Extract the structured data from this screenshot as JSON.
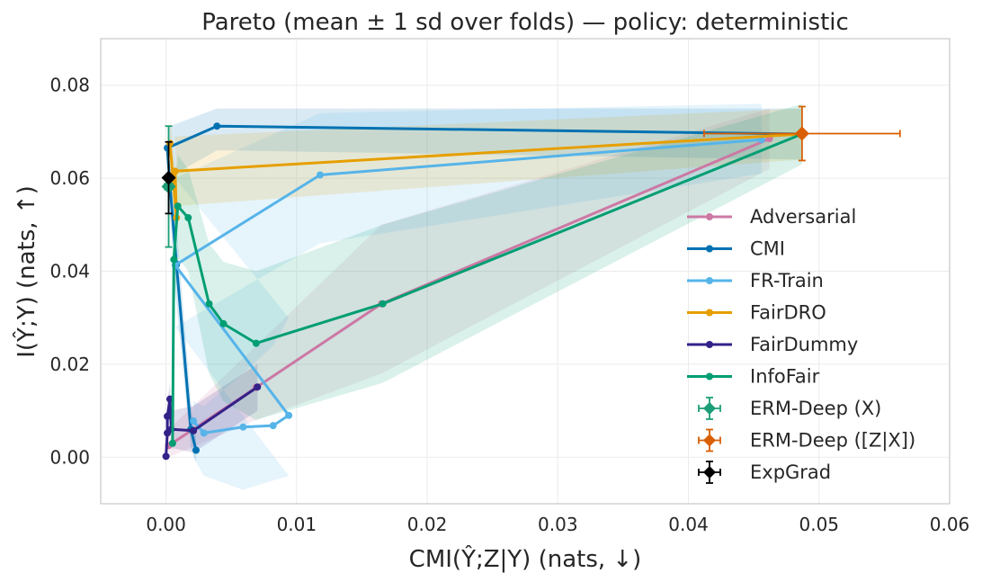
{
  "chart_data": {
    "type": "scatter",
    "title": "Pareto (mean ± 1 sd over folds) — policy: deterministic",
    "xlabel": "CMI(Ŷ;Z|Y) (nats, ↓)",
    "ylabel": "I(Ŷ;Y) (nats, ↑)",
    "xlim": [
      -0.005,
      0.06
    ],
    "ylim": [
      -0.01,
      0.09
    ],
    "xticks": [
      0.0,
      0.01,
      0.02,
      0.03,
      0.04,
      0.05,
      0.06
    ],
    "xtick_labels": [
      "0.00",
      "0.01",
      "0.02",
      "0.03",
      "0.04",
      "0.05",
      "0.06"
    ],
    "yticks": [
      0.0,
      0.02,
      0.04,
      0.06,
      0.08
    ],
    "ytick_labels": [
      "0.00",
      "0.02",
      "0.04",
      "0.06",
      "0.08"
    ],
    "grid": true,
    "legend_position": "right",
    "series": [
      {
        "name": "Adversarial",
        "color": "#cc78a4",
        "kind": "line",
        "points": [
          [
            0.0002,
            0.0025
          ],
          [
            0.0069,
            0.015
          ],
          [
            0.0165,
            0.033
          ],
          [
            0.0462,
            0.0685
          ]
        ],
        "band_upper": [
          [
            0.0002,
            0.006
          ],
          [
            0.0069,
            0.024
          ],
          [
            0.0165,
            0.05
          ],
          [
            0.0462,
            0.075
          ]
        ],
        "band_lower": [
          [
            0.0002,
            0.0
          ],
          [
            0.0069,
            0.008
          ],
          [
            0.0165,
            0.018
          ],
          [
            0.0462,
            0.062
          ]
        ]
      },
      {
        "name": "CMI",
        "color": "#0072b2",
        "kind": "line",
        "points": [
          [
            0.0023,
            0.0015
          ],
          [
            0.0019,
            0.006
          ],
          [
            0.0008,
            0.0415
          ],
          [
            0.0003,
            0.0585
          ],
          [
            0.0001,
            0.0665
          ],
          [
            0.0039,
            0.0712
          ],
          [
            0.0487,
            0.0695
          ]
        ],
        "band_upper": [
          [
            0.0023,
            0.005
          ],
          [
            0.0019,
            0.012
          ],
          [
            0.0008,
            0.05
          ],
          [
            0.0003,
            0.064
          ],
          [
            0.0001,
            0.071
          ],
          [
            0.0039,
            0.075
          ],
          [
            0.0487,
            0.075
          ]
        ],
        "band_lower": [
          [
            0.0023,
            -0.001
          ],
          [
            0.0019,
            0.002
          ],
          [
            0.0008,
            0.033
          ],
          [
            0.0003,
            0.052
          ],
          [
            0.0001,
            0.06
          ],
          [
            0.0039,
            0.066
          ],
          [
            0.0487,
            0.064
          ]
        ]
      },
      {
        "name": "FR-Train",
        "color": "#56b4e9",
        "kind": "line",
        "points": [
          [
            0.0021,
            0.0078
          ],
          [
            0.0029,
            0.0052
          ],
          [
            0.0059,
            0.0065
          ],
          [
            0.0082,
            0.0068
          ],
          [
            0.0094,
            0.009
          ],
          [
            0.0007,
            0.0413
          ],
          [
            0.0118,
            0.0607
          ],
          [
            0.0456,
            0.0683
          ]
        ],
        "band_upper": [
          [
            0.0021,
            0.012
          ],
          [
            0.0029,
            0.011
          ],
          [
            0.0059,
            0.018
          ],
          [
            0.0082,
            0.024
          ],
          [
            0.0094,
            0.03
          ],
          [
            0.0007,
            0.06
          ],
          [
            0.0118,
            0.074
          ],
          [
            0.0456,
            0.076
          ]
        ],
        "band_lower": [
          [
            0.0021,
            0.0
          ],
          [
            0.0029,
            -0.004
          ],
          [
            0.0059,
            -0.007
          ],
          [
            0.0082,
            -0.005
          ],
          [
            0.0094,
            -0.004
          ],
          [
            0.0007,
            0.028
          ],
          [
            0.0118,
            0.046
          ],
          [
            0.0456,
            0.061
          ]
        ]
      },
      {
        "name": "FairDRO",
        "color": "#e69f00",
        "kind": "line",
        "points": [
          [
            0.0003,
            0.0675
          ],
          [
            0.0008,
            0.0515
          ],
          [
            0.0007,
            0.0615
          ],
          [
            0.0487,
            0.0695
          ]
        ],
        "band_upper": [
          [
            0.0003,
            0.073
          ],
          [
            0.0008,
            0.06
          ],
          [
            0.0007,
            0.069
          ],
          [
            0.0487,
            0.075
          ]
        ],
        "band_lower": [
          [
            0.0003,
            0.061
          ],
          [
            0.0008,
            0.045
          ],
          [
            0.0007,
            0.054
          ],
          [
            0.0487,
            0.064
          ]
        ]
      },
      {
        "name": "FairDummy",
        "color": "#332288",
        "kind": "line",
        "points": [
          [
            0.0,
            0.0002
          ],
          [
            0.0001,
            0.0052
          ],
          [
            0.0001,
            0.0088
          ],
          [
            0.0003,
            0.0125
          ],
          [
            0.0004,
            0.006
          ],
          [
            0.0021,
            0.0057
          ],
          [
            0.007,
            0.0151
          ]
        ],
        "band_upper": [
          [
            0.0,
            0.002
          ],
          [
            0.0001,
            0.008
          ],
          [
            0.0001,
            0.012
          ],
          [
            0.0003,
            0.016
          ],
          [
            0.0004,
            0.01
          ],
          [
            0.0021,
            0.011
          ],
          [
            0.007,
            0.02
          ]
        ],
        "band_lower": [
          [
            0.0,
            -0.002
          ],
          [
            0.0001,
            0.002
          ],
          [
            0.0001,
            0.005
          ],
          [
            0.0003,
            0.009
          ],
          [
            0.0004,
            0.002
          ],
          [
            0.0021,
            0.001
          ],
          [
            0.007,
            0.01
          ]
        ]
      },
      {
        "name": "InfoFair",
        "color": "#009e73",
        "kind": "line",
        "points": [
          [
            0.0005,
            0.003
          ],
          [
            0.0006,
            0.0425
          ],
          [
            0.0009,
            0.054
          ],
          [
            0.0017,
            0.0515
          ],
          [
            0.0033,
            0.033
          ],
          [
            0.0044,
            0.0287
          ],
          [
            0.0069,
            0.0245
          ],
          [
            0.0166,
            0.033
          ],
          [
            0.0487,
            0.0695
          ]
        ],
        "band_upper": [
          [
            0.0005,
            0.012
          ],
          [
            0.0006,
            0.055
          ],
          [
            0.0009,
            0.065
          ],
          [
            0.0017,
            0.062
          ],
          [
            0.0033,
            0.046
          ],
          [
            0.0044,
            0.042
          ],
          [
            0.0069,
            0.04
          ],
          [
            0.0166,
            0.05
          ],
          [
            0.0487,
            0.076
          ]
        ],
        "band_lower": [
          [
            0.0005,
            -0.004
          ],
          [
            0.0006,
            0.03
          ],
          [
            0.0009,
            0.043
          ],
          [
            0.0017,
            0.04
          ],
          [
            0.0033,
            0.018
          ],
          [
            0.0044,
            0.012
          ],
          [
            0.0069,
            0.008
          ],
          [
            0.0166,
            0.016
          ],
          [
            0.0487,
            0.063
          ]
        ]
      },
      {
        "name": "ERM-Deep (X)",
        "color": "#1b9e77",
        "kind": "errorbar",
        "x": 0.0002,
        "y": 0.0582,
        "xerr": 0.0003,
        "yerr": 0.013
      },
      {
        "name": "ERM-Deep ([Z|X])",
        "color": "#d95f02",
        "kind": "errorbar",
        "x": 0.0487,
        "y": 0.0696,
        "xerr": 0.0075,
        "yerr": 0.0058
      },
      {
        "name": "ExpGrad",
        "color": "#000000",
        "kind": "errorbar",
        "x": 0.0002,
        "y": 0.0601,
        "xerr": 0.0002,
        "yerr": 0.0077
      }
    ]
  }
}
